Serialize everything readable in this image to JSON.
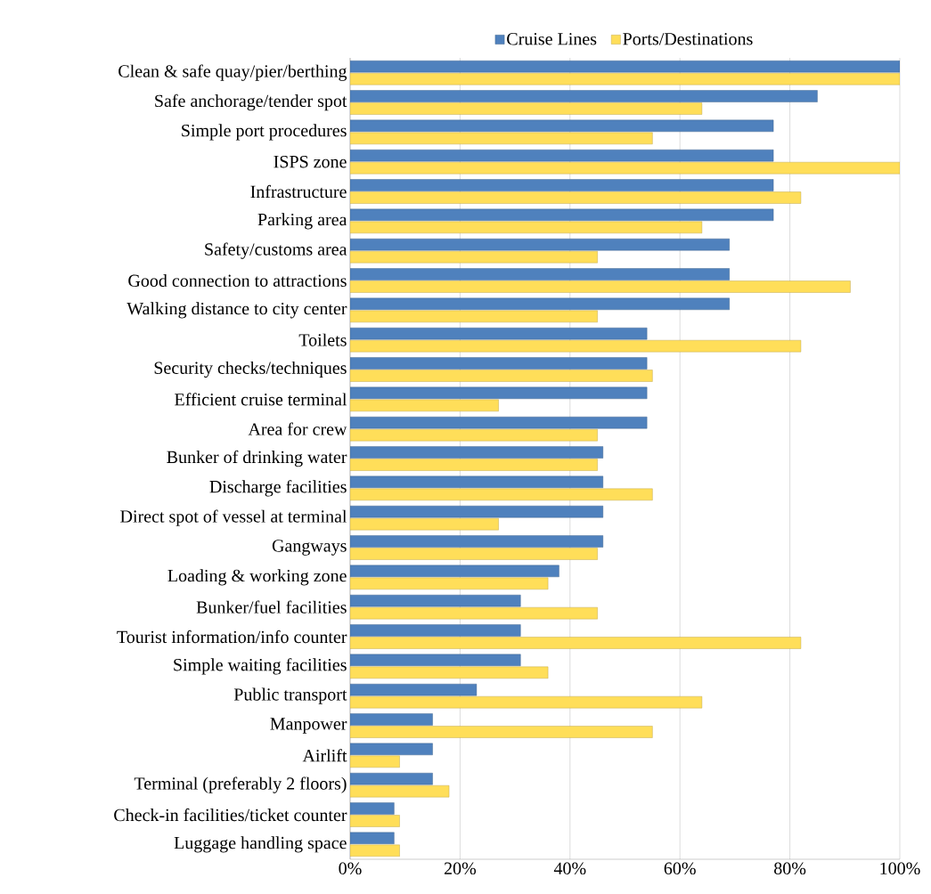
{
  "chart_data": {
    "type": "bar",
    "orientation": "horizontal",
    "categories": [
      "Clean & safe quay/pier/berthing",
      "Safe anchorage/tender spot",
      "Simple port procedures",
      "ISPS zone",
      "Infrastructure",
      "Parking area",
      "Safety/customs area",
      "Good connection to attractions",
      "Walking distance to city center",
      "Toilets",
      "Security checks/techniques",
      "Efficient cruise terminal",
      "Area for crew",
      "Bunker of drinking water",
      "Discharge facilities",
      "Direct spot of vessel at terminal",
      "Gangways",
      "Loading & working zone",
      "Bunker/fuel facilities",
      "Tourist information/info counter",
      "Simple waiting facilities",
      "Public transport",
      "Manpower",
      "Airlift",
      "Terminal (preferably 2 floors)",
      "Check-in facilities/ticket counter",
      "Luggage handling space"
    ],
    "series": [
      {
        "name": "Cruise Lines",
        "color": "#4f81bd",
        "values": [
          100,
          85,
          77,
          77,
          77,
          77,
          69,
          69,
          69,
          54,
          54,
          54,
          54,
          46,
          46,
          46,
          46,
          38,
          31,
          31,
          31,
          23,
          15,
          15,
          15,
          8,
          8
        ]
      },
      {
        "name": "Ports/Destinations",
        "color": "#ffde59",
        "values": [
          100,
          64,
          55,
          100,
          82,
          64,
          45,
          91,
          45,
          82,
          55,
          27,
          45,
          45,
          55,
          27,
          45,
          36,
          45,
          82,
          36,
          64,
          55,
          9,
          18,
          9,
          9
        ]
      }
    ],
    "xlim": [
      0,
      100
    ],
    "xticks": [
      {
        "value": 0,
        "label": "0%"
      },
      {
        "value": 20,
        "label": "20%"
      },
      {
        "value": 40,
        "label": "40%"
      },
      {
        "value": 60,
        "label": "60%"
      },
      {
        "value": 80,
        "label": "80%"
      },
      {
        "value": 100,
        "label": "100%"
      }
    ],
    "grid": "x",
    "legend": "top"
  }
}
